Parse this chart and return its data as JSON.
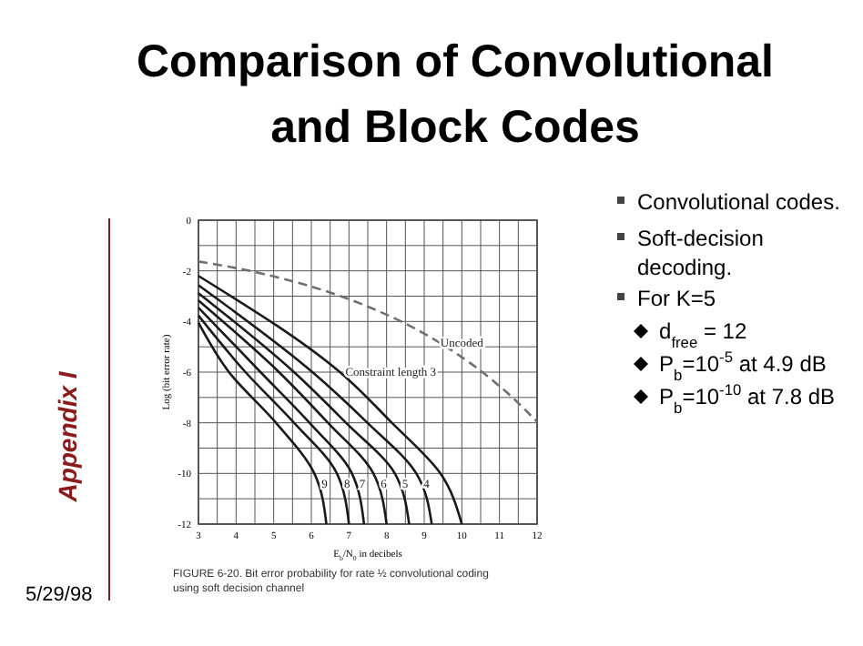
{
  "chart_data": {
    "type": "line",
    "title": "Comparison of Convolutional and Block Codes",
    "xlabel": "E$_{b}$/N$_{0}$ in decibels",
    "ylabel": "Log (bit error rate)",
    "xlim": [
      3,
      12
    ],
    "ylim": [
      -12,
      0
    ],
    "xticks": [
      3,
      {
        "value": 3.5,
        "label": null
      },
      4,
      {
        "value": 4.5,
        "label": null
      },
      5,
      {
        "value": 5.5,
        "label": null
      },
      6,
      {
        "value": 6.5,
        "label": null
      },
      7,
      {
        "value": 7.5,
        "label": null
      },
      8,
      {
        "value": 8.5,
        "label": null
      },
      9,
      {
        "value": 9.5,
        "label": null
      },
      10,
      {
        "value": 10.5,
        "label": null
      },
      11,
      {
        "value": 11.5,
        "label": null
      },
      12
    ],
    "yticks": [
      0,
      {
        "value": -1,
        "label": null
      },
      -2,
      {
        "value": -3,
        "label": null
      },
      -4,
      {
        "value": -5,
        "label": null
      },
      -6,
      {
        "value": -7,
        "label": null
      },
      -8,
      {
        "value": -9,
        "label": null
      },
      -10,
      {
        "value": -11,
        "label": null
      },
      -12
    ],
    "grid": true,
    "series": [
      {
        "name": "Uncoded",
        "color": "#707070",
        "line_style": "dashed",
        "x": [
          3,
          4,
          5,
          6,
          7,
          8,
          9,
          10,
          11,
          12
        ],
        "values": [
          -1.63,
          -1.89,
          -2.22,
          -2.62,
          -3.12,
          -3.73,
          -4.48,
          -5.41,
          -6.55,
          -7.96
        ]
      },
      {
        "name": "Constraint length 3",
        "color": "#1a1a1a",
        "x": [
          3,
          6.76,
          8.14,
          9.43,
          10.0
        ],
        "values": [
          -2.2,
          -6,
          -8,
          -10,
          -12
        ]
      },
      {
        "name": "4",
        "color": "#1a1a1a",
        "x": [
          3,
          6.03,
          7.49,
          8.79,
          9.2
        ],
        "values": [
          -2.57,
          -6,
          -8,
          -10,
          -12
        ]
      },
      {
        "name": "5",
        "color": "#1a1a1a",
        "x": [
          3,
          5.54,
          6.92,
          8.22,
          8.6
        ],
        "values": [
          -2.88,
          -6,
          -8,
          -10,
          -12
        ]
      },
      {
        "name": "6",
        "color": "#1a1a1a",
        "x": [
          3,
          5.14,
          6.44,
          7.65,
          8.0
        ],
        "values": [
          -3.17,
          -6,
          -8,
          -10,
          -12
        ]
      },
      {
        "name": "7",
        "color": "#1a1a1a",
        "x": [
          3,
          4.65,
          5.95,
          7.08,
          7.4
        ],
        "values": [
          -3.45,
          -6,
          -8,
          -10,
          -12
        ]
      },
      {
        "name": "8",
        "color": "#1a1a1a",
        "x": [
          3,
          4.25,
          5.54,
          6.68,
          7.0
        ],
        "values": [
          -3.77,
          -6,
          -8,
          -10,
          -12
        ]
      },
      {
        "name": "9",
        "color": "#1a1a1a",
        "x": [
          3,
          3.81,
          5.06,
          6.08,
          6.4
        ],
        "values": [
          -4.05,
          -6,
          -8,
          -10,
          -12
        ]
      }
    ],
    "annotations": [
      "Appendix I",
      "5/29/98",
      "FIGURE 6-20.  Bit error probability for rate ½ convolutional coding using soft decision channel",
      "Convolutional codes.",
      "Soft-decision decoding.",
      "For K=5",
      "d$_{free}$ = 12",
      "P$_{b}$=10$^{-5}$ at 4.9 dB",
      "P$_{b}$=10$^{-10}$ at 7.8 dB"
    ]
  }
}
